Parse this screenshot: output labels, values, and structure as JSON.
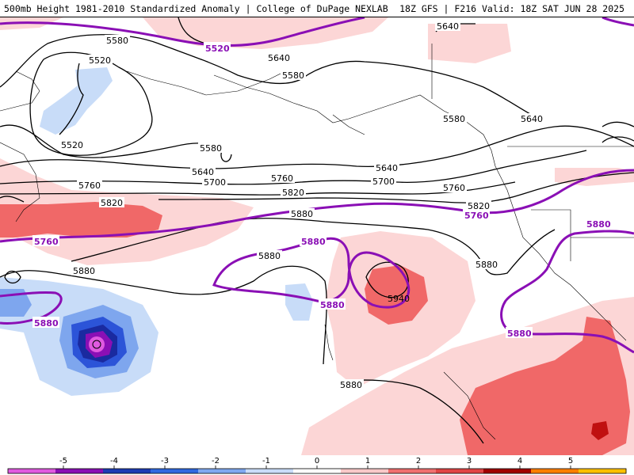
{
  "header": {
    "title_left": "500mb Height 1981-2010 Standardized Anomaly | College of DuPage NEXLAB",
    "title_right": "18Z GFS | F216 Valid: 18Z SAT JUN 28 2025"
  },
  "contour_labels": {
    "h5520_a": "5520",
    "h5520_b": "5520",
    "h5520_c": "5520",
    "h5580_a": "5580",
    "h5580_b": "5580",
    "h5580_c": "5580",
    "h5580_d": "5580",
    "h5640_a": "5640",
    "h5640_b": "5640",
    "h5640_c": "5640",
    "h5640_d": "5640",
    "h5640_e": "5640",
    "h5700_a": "5700",
    "h5700_b": "5700",
    "h5760_a": "5760",
    "h5760_b": "5760",
    "h5760_c": "5760",
    "h5760_d": "5760",
    "h5820_a": "5820",
    "h5820_b": "5820",
    "h5820_c": "5820",
    "h5880_a": "5880",
    "h5880_b": "5880",
    "h5880_c": "5880",
    "h5880_d": "5880",
    "h5880_e": "5880",
    "h5880_f": "5880",
    "h5880_g": "5880",
    "h5880_h": "5880",
    "h5880_i": "5880",
    "h5940_a": "5940"
  },
  "colorbar": {
    "ticks": [
      "-5",
      "-4",
      "-3",
      "-2",
      "-1",
      "0",
      "1",
      "2",
      "3",
      "4",
      "5"
    ],
    "colors": [
      "#e05ae0",
      "#8a0fb5",
      "#1e3cb4",
      "#2f69e0",
      "#7fa8f0",
      "#c9dcf8",
      "#ffffff",
      "#f8c8c8",
      "#f07070",
      "#e04545",
      "#a00000",
      "#ff7f00",
      "#ffc000"
    ]
  },
  "colors": {
    "positive_light": "#fcd6d6",
    "positive_mid": "#f7a8a8",
    "positive_strong": "#f06868",
    "positive_extreme": "#c01010",
    "negative_light": "#c8dcf8",
    "negative_mid": "#7ea6ee",
    "negative_strong": "#2c54d8",
    "negative_deep": "#1a2aa0",
    "negative_extreme": "#b020c0",
    "highlight_contour": "#8a0fb5"
  }
}
